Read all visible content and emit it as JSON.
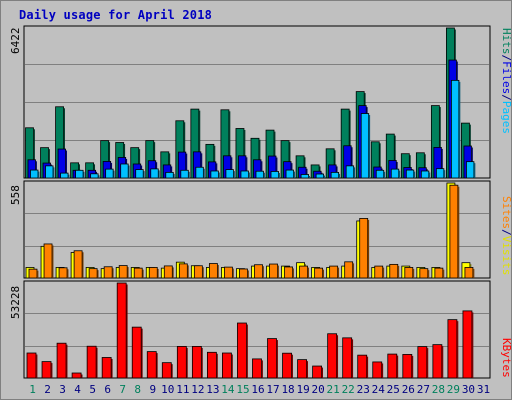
{
  "title": "Daily usage for April 2018",
  "colors": {
    "hits": "#00805c",
    "files": "#0000e6",
    "pages": "#00c0ff",
    "visits": "#ffff00",
    "sites": "#ff8000",
    "kbytes": "#ff0000",
    "weekend_day": "#00805c",
    "weekday": "#000080"
  },
  "chart_data": [
    {
      "type": "bar",
      "panel": "hits-files-pages",
      "ymax_label": "6422",
      "ymax": 6422,
      "legend": {
        "pages": "Pages",
        "files": "Files",
        "hits": "Hits",
        "sep1": "/",
        "sep2": "/"
      },
      "categories": [
        "1",
        "2",
        "3",
        "4",
        "5",
        "6",
        "7",
        "8",
        "9",
        "10",
        "11",
        "12",
        "13",
        "14",
        "15",
        "16",
        "17",
        "18",
        "19",
        "20",
        "21",
        "22",
        "23",
        "24",
        "25",
        "26",
        "27",
        "28",
        "29",
        "30",
        "31"
      ],
      "series": [
        {
          "name": "Hits",
          "values": [
            2150,
            1300,
            3050,
            650,
            650,
            1600,
            1520,
            1300,
            1600,
            1120,
            2450,
            2950,
            1440,
            2920,
            2120,
            1700,
            2050,
            1600,
            950,
            560,
            1250,
            2950,
            3700,
            1550,
            1880,
            1040,
            1080,
            3100,
            6422,
            2350,
            0
          ]
        },
        {
          "name": "Files",
          "values": [
            780,
            640,
            1240,
            330,
            330,
            710,
            880,
            600,
            740,
            560,
            1110,
            1120,
            690,
            950,
            950,
            780,
            940,
            700,
            460,
            290,
            560,
            1380,
            3100,
            470,
            750,
            450,
            440,
            1310,
            5050,
            1370,
            0
          ]
        },
        {
          "name": "Pages",
          "values": [
            340,
            520,
            210,
            330,
            180,
            380,
            600,
            360,
            390,
            240,
            330,
            460,
            300,
            360,
            300,
            290,
            280,
            340,
            150,
            170,
            240,
            520,
            2760,
            330,
            380,
            340,
            300,
            400,
            4180,
            700,
            0
          ]
        }
      ]
    },
    {
      "type": "bar",
      "panel": "visits-sites",
      "ymax_label": "558",
      "ymax": 558,
      "legend": {
        "sites": "Sites",
        "visits": "Visits",
        "sep": "/"
      },
      "categories": [
        "1",
        "2",
        "3",
        "4",
        "5",
        "6",
        "7",
        "8",
        "9",
        "10",
        "11",
        "12",
        "13",
        "14",
        "15",
        "16",
        "17",
        "18",
        "19",
        "20",
        "21",
        "22",
        "23",
        "24",
        "25",
        "26",
        "27",
        "28",
        "29",
        "30",
        "31"
      ],
      "series": [
        {
          "name": "Visits",
          "values": [
            62,
            186,
            62,
            150,
            62,
            55,
            62,
            62,
            62,
            58,
            93,
            72,
            62,
            62,
            55,
            70,
            70,
            70,
            90,
            62,
            62,
            70,
            335,
            62,
            70,
            70,
            62,
            62,
            558,
            90,
            0
          ]
        },
        {
          "name": "Sites",
          "values": [
            52,
            200,
            60,
            160,
            55,
            66,
            73,
            58,
            62,
            71,
            83,
            72,
            85,
            64,
            53,
            78,
            82,
            65,
            70,
            58,
            70,
            95,
            350,
            70,
            80,
            62,
            55,
            58,
            545,
            62,
            0
          ]
        }
      ]
    },
    {
      "type": "bar",
      "panel": "kbytes",
      "ymax_label": "53228",
      "ymax": 53228,
      "legend": {
        "kbytes": "KBytes"
      },
      "categories": [
        "1",
        "2",
        "3",
        "4",
        "5",
        "6",
        "7",
        "8",
        "9",
        "10",
        "11",
        "12",
        "13",
        "14",
        "15",
        "16",
        "17",
        "18",
        "19",
        "20",
        "21",
        "22",
        "23",
        "24",
        "25",
        "26",
        "27",
        "28",
        "29",
        "30",
        "31"
      ],
      "series": [
        {
          "name": "KBytes",
          "values": [
            14000,
            9200,
            19500,
            2800,
            17800,
            11500,
            53228,
            28500,
            14800,
            8600,
            17700,
            17700,
            14400,
            14000,
            30800,
            10700,
            22100,
            13900,
            10300,
            6700,
            24800,
            22500,
            12800,
            9000,
            13400,
            13200,
            17600,
            18700,
            32700,
            37600,
            0
          ]
        }
      ]
    }
  ],
  "weekend_days": [
    "1",
    "7",
    "8",
    "14",
    "15",
    "21",
    "22",
    "28",
    "29"
  ]
}
